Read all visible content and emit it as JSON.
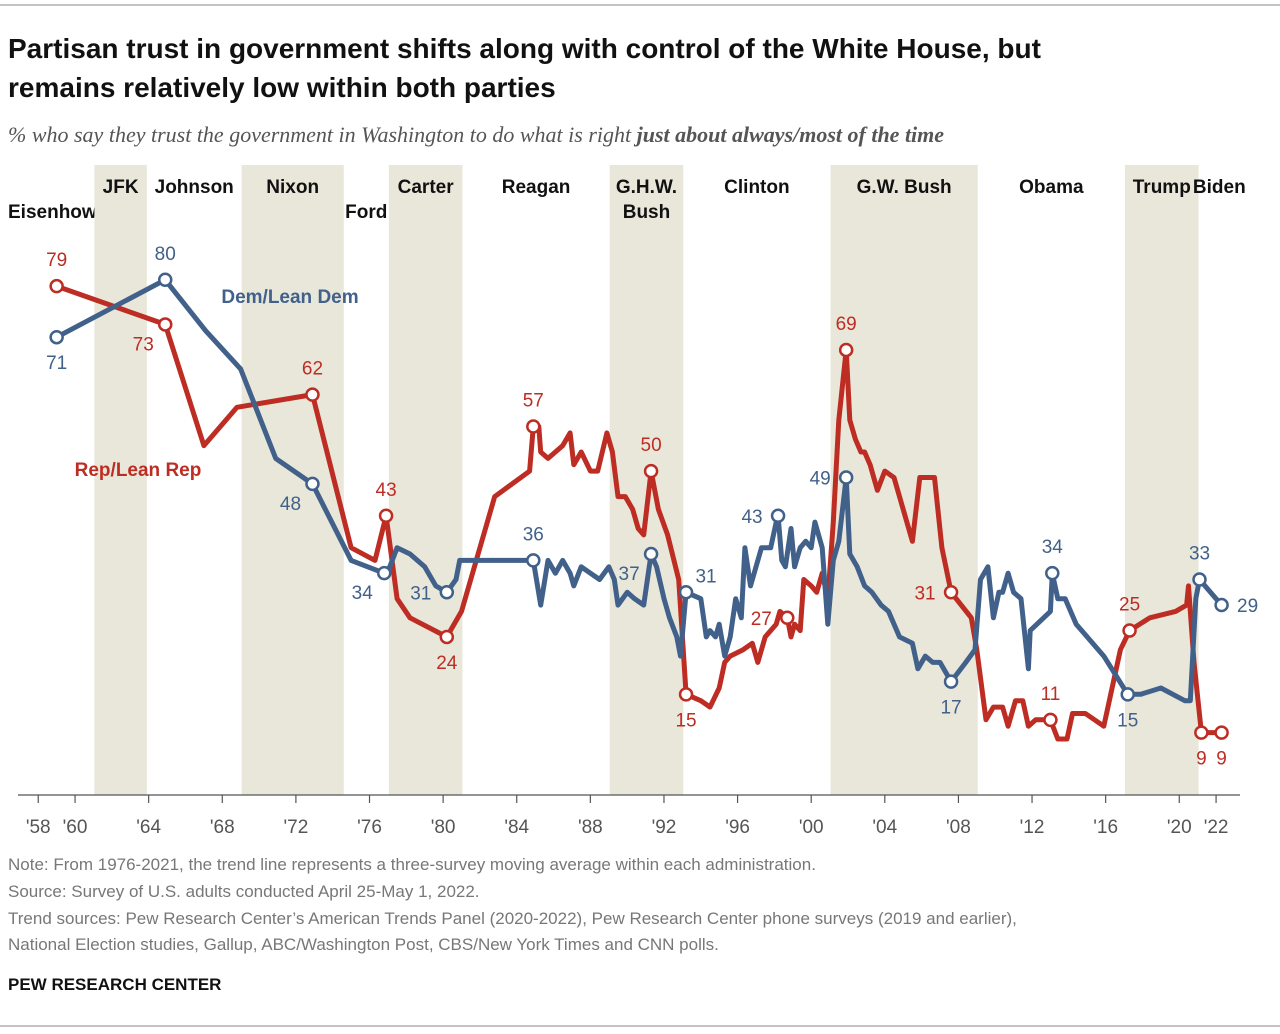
{
  "chart_data": {
    "type": "line",
    "title": [
      "Partisan trust in government shifts along with control of the White House, but",
      "remains relatively low within both parties"
    ],
    "subtitle": "% who say they trust the government in Washington to do what is right ",
    "subtitle_emphasis": "just about always/most of the time",
    "xlim": [
      1956.9,
      2023.3
    ],
    "ylim": [
      0,
      98
    ],
    "xticks": [
      {
        "value": 1958,
        "label": "'58"
      },
      {
        "value": 1960,
        "label": "'60"
      },
      {
        "value": 1964,
        "label": "'64"
      },
      {
        "value": 1968,
        "label": "'68"
      },
      {
        "value": 1972,
        "label": "'72"
      },
      {
        "value": 1976,
        "label": "'76"
      },
      {
        "value": 1980,
        "label": "'80"
      },
      {
        "value": 1984,
        "label": "'84"
      },
      {
        "value": 1988,
        "label": "'88"
      },
      {
        "value": 1992,
        "label": "'92"
      },
      {
        "value": 1996,
        "label": "'96"
      },
      {
        "value": 2000,
        "label": "'00"
      },
      {
        "value": 2004,
        "label": "'04"
      },
      {
        "value": 2008,
        "label": "'08"
      },
      {
        "value": 2012,
        "label": "'12"
      },
      {
        "value": 2016,
        "label": "'16"
      },
      {
        "value": 2020,
        "label": "'20"
      },
      {
        "value": 2022,
        "label": "'22"
      }
    ],
    "band_color": "#e9e7da",
    "presidents": [
      {
        "label": [
          "Eisenhower"
        ],
        "start": null,
        "end": 1961.05,
        "shaded": false
      },
      {
        "label": [
          "JFK"
        ],
        "start": 1961.05,
        "end": 1963.9,
        "shaded": true
      },
      {
        "label": [
          "Johnson"
        ],
        "start": 1963.9,
        "end": 1969.05,
        "shaded": false
      },
      {
        "label": [
          "Nixon"
        ],
        "start": 1969.05,
        "end": 1974.6,
        "shaded": true
      },
      {
        "label": [
          "Ford"
        ],
        "start": 1974.6,
        "end": 1977.05,
        "shaded": false
      },
      {
        "label": [
          "Carter"
        ],
        "start": 1977.05,
        "end": 1981.05,
        "shaded": true
      },
      {
        "label": [
          "Reagan"
        ],
        "start": 1981.05,
        "end": 1989.05,
        "shaded": false
      },
      {
        "label": [
          "G.H.W.",
          "Bush"
        ],
        "start": 1989.05,
        "end": 1993.05,
        "shaded": true
      },
      {
        "label": [
          "Clinton"
        ],
        "start": 1993.05,
        "end": 2001.05,
        "shaded": false
      },
      {
        "label": [
          "G.W. Bush"
        ],
        "start": 2001.05,
        "end": 2009.05,
        "shaded": true
      },
      {
        "label": [
          "Obama"
        ],
        "start": 2009.05,
        "end": 2017.05,
        "shaded": false
      },
      {
        "label": [
          "Trump"
        ],
        "start": 2017.05,
        "end": 2021.05,
        "shaded": true
      },
      {
        "label": [
          "Biden"
        ],
        "start": 2021.05,
        "end": null,
        "shaded": false
      }
    ],
    "series": [
      {
        "name": "Rep/Lean Rep",
        "color": "#be2d24",
        "x": [
          1959,
          1964.9,
          1967,
          1968.8,
          1972.9,
          1975,
          1976.3,
          1976.9,
          1977.5,
          1978.2,
          1980.2,
          1981,
          1982.8,
          1984.7,
          1984.9,
          1985.2,
          1985.3,
          1985.7,
          1986.1,
          1986.5,
          1986.9,
          1987.1,
          1987.5,
          1988,
          1988.4,
          1988.9,
          1989.2,
          1989.5,
          1989.9,
          1990.3,
          1990.6,
          1990.9,
          1991.3,
          1991.7,
          1992.2,
          1992.8,
          1993.2,
          1994,
          1994.5,
          1995,
          1995.3,
          1995.6,
          1996.3,
          1996.8,
          1997.1,
          1997.5,
          1998.1,
          1998.3,
          1998.7,
          1998.9,
          1999.1,
          1999.4,
          1999.6,
          2000,
          2000.3,
          2000.6,
          2000.9,
          2001.2,
          2001.5,
          2001.9,
          2002.1,
          2002.4,
          2002.7,
          2002.9,
          2003.2,
          2003.6,
          2004,
          2004.5,
          2004.8,
          2005.5,
          2005.9,
          2006.2,
          2006.7,
          2007.1,
          2007.6,
          2008.7,
          2009,
          2009.5,
          2009.9,
          2010.4,
          2010.7,
          2011.1,
          2011.5,
          2011.8,
          2012.2,
          2013,
          2013.4,
          2013.9,
          2014.2,
          2014.9,
          2015.9,
          2016.8,
          2017.3,
          2018.4,
          2019.8,
          2020.4,
          2020.5,
          2020.8,
          2021.2,
          2022.3
        ],
        "values": [
          79,
          73,
          54,
          60,
          62,
          38,
          36,
          43,
          30,
          27,
          24,
          28,
          46,
          50,
          57,
          57,
          53,
          52,
          53,
          54,
          56,
          51,
          53,
          50,
          50,
          56,
          53,
          46,
          46,
          44,
          41,
          40,
          50,
          44,
          40,
          33,
          15,
          14,
          13,
          16,
          20,
          21,
          22,
          23,
          20,
          24,
          26,
          28,
          27,
          24,
          26,
          25,
          33,
          32,
          31,
          34,
          30,
          42,
          58,
          69,
          58,
          55,
          53,
          53,
          51,
          47,
          50,
          49,
          46,
          39,
          49,
          49,
          49,
          38,
          31,
          27,
          22,
          11,
          13,
          13,
          10,
          14,
          14,
          10,
          11,
          11,
          8,
          8,
          12,
          12,
          10,
          22,
          25,
          27,
          28,
          29,
          32,
          20,
          9,
          9
        ],
        "labeled_points": [
          0,
          1,
          4,
          7,
          10,
          14,
          32,
          36,
          48,
          59,
          74,
          85,
          92,
          98,
          99
        ]
      },
      {
        "name": "Dem/Lean Dem",
        "color": "#41618a",
        "x": [
          1959,
          1964.9,
          1967.1,
          1969,
          1970.9,
          1972.9,
          1975,
          1976.8,
          1977.1,
          1977.5,
          1978.2,
          1979,
          1979.6,
          1980.2,
          1980.7,
          1980.9,
          1982.6,
          1984.5,
          1984.9,
          1985.3,
          1985.7,
          1986.1,
          1986.5,
          1986.9,
          1987.1,
          1987.5,
          1988,
          1988.5,
          1989,
          1989.3,
          1989.5,
          1990,
          1990.4,
          1990.9,
          1991.3,
          1991.6,
          1992,
          1992.3,
          1992.7,
          1992.9,
          1993.2,
          1994,
          1994.3,
          1994.5,
          1994.8,
          1995,
          1995.3,
          1995.6,
          1995.9,
          1996.2,
          1996.4,
          1996.7,
          1997,
          1997.3,
          1997.8,
          1998.1,
          1998.2,
          1998.4,
          1998.6,
          1998.9,
          1999.1,
          1999.4,
          1999.7,
          2000,
          2000.2,
          2000.6,
          2000.9,
          2001.2,
          2001.5,
          2001.9,
          2002.1,
          2002.5,
          2002.9,
          2003.3,
          2003.8,
          2004.2,
          2004.8,
          2005.5,
          2005.8,
          2006.2,
          2006.6,
          2007,
          2007.6,
          2008.4,
          2008.9,
          2009.2,
          2009.6,
          2009.9,
          2010.2,
          2010.4,
          2010.7,
          2011,
          2011.4,
          2011.8,
          2011.9,
          2013,
          2013.1,
          2013.4,
          2013.8,
          2014.4,
          2015.9,
          2017.2,
          2017.9,
          2019,
          2020.3,
          2020.6,
          2020.9,
          2021.1,
          2022.3
        ],
        "values": [
          71,
          80,
          72,
          66,
          52,
          48,
          36,
          34,
          35,
          38,
          37,
          35,
          32,
          31,
          33,
          36,
          36,
          36,
          36,
          29,
          36,
          34,
          36,
          34,
          32,
          35,
          34,
          33,
          35,
          33,
          29,
          31,
          30,
          29,
          37,
          35,
          30,
          27,
          24,
          21,
          31,
          30,
          24,
          25,
          24,
          26,
          21,
          24,
          30,
          27,
          38,
          32,
          35,
          38,
          38,
          42,
          43,
          36,
          35,
          41,
          35,
          38,
          39,
          38,
          42,
          38,
          26,
          36,
          39,
          49,
          37,
          35,
          32,
          31,
          29,
          28,
          24,
          23,
          19,
          21,
          20,
          20,
          17,
          20,
          22,
          33,
          35,
          27,
          31,
          31,
          34,
          31,
          30,
          19,
          25,
          28,
          34,
          30,
          30,
          26,
          21,
          15,
          15,
          16,
          14,
          14,
          30,
          33,
          29
        ],
        "labeled_points": [
          0,
          1,
          5,
          7,
          13,
          18,
          34,
          40,
          56,
          69,
          82,
          96,
          101,
          107,
          108
        ]
      }
    ],
    "notes": [
      "Note: From 1976-2021, the trend line represents a three-survey moving average within each administration.",
      "Source: Survey of U.S. adults conducted April 25-May 1, 2022.",
      "Trend sources: Pew Research Center’s American Trends Panel (2020-2022), Pew Research Center phone surveys (2019 and earlier),",
      "National Election studies, Gallup, ABC/Washington Post, CBS/New York Times and CNN polls."
    ],
    "source_label": "PEW RESEARCH CENTER"
  }
}
